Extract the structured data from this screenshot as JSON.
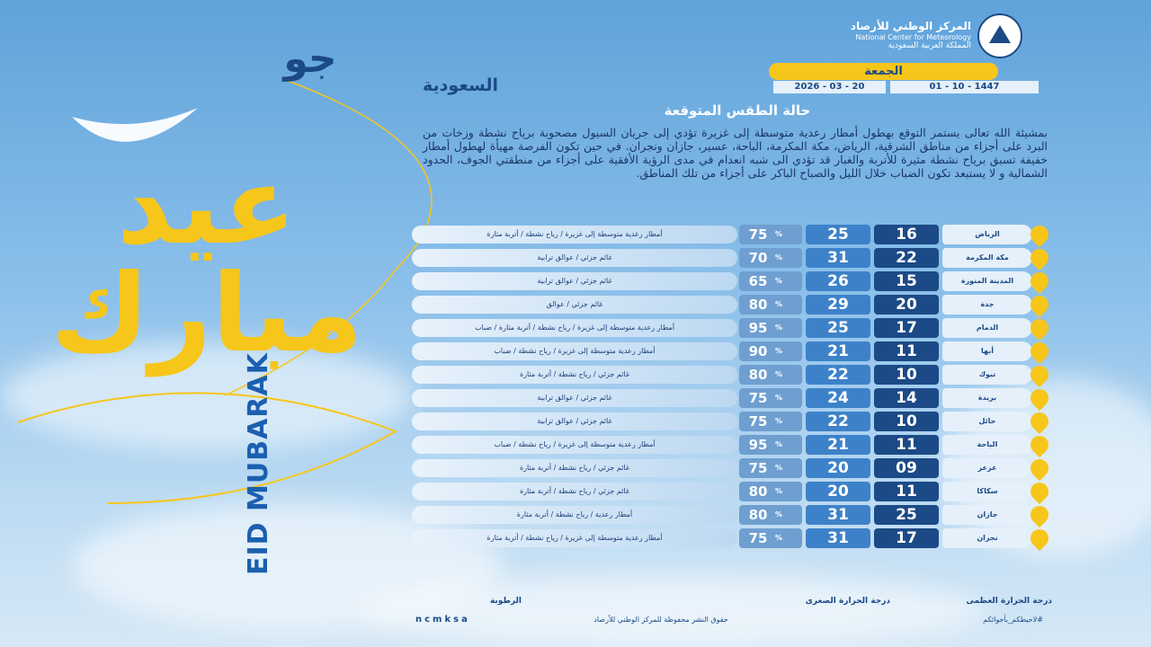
{
  "header": {
    "org_ar": "المركز الوطني للأرصاد",
    "org_en": "National Center for Meteorology",
    "country": "المملكة العربية السعودية",
    "brand": "جو",
    "brand_sub": "السعودية",
    "day": "الجمعة",
    "hijri": "01 - 10 - 1447",
    "gregorian": "2026 - 03 - 20"
  },
  "greeting": {
    "ar": "عيد مبارك",
    "en": "EID MUBARAK"
  },
  "forecast": {
    "title": "حالة الطقس المتوقعة",
    "text": "بمشيئة الله تعالى يستمر التوقع بهطول أمطار رعدية متوسطة إلى غزيرة تؤدي إلى جريان السيول مصحوبة برياح نشطة وزخات من البرد على أجزاء من مناطق الشرقية، الرياض، مكة المكرمة، الباحة، عسير، جازان ونجران. في حين تكون الفرصة مهيأة لهطول أمطار خفيفة تسبق برياح نشطة مثيرة للأتربة والغبار قد تؤدي الى شبه انعدام في مدى الرؤية الأفقية على أجزاء من منطقتي الجوف، الحدود الشمالية و لا يستبعد تكون الضباب خلال الليل والصباح الباكر على أجزاء من تلك المناطق."
  },
  "table": {
    "unit": "%",
    "rows": [
      {
        "city": "الرياض",
        "min": 16,
        "max": 25,
        "humidity": 75,
        "desc": "أمطار رعدية متوسطة إلى غزيرة / رياح نشطة / أتربة مثارة"
      },
      {
        "city": "مكة المكرمة",
        "min": 22,
        "max": 31,
        "humidity": 70,
        "desc": "غائم جزئي / عوالق ترابية"
      },
      {
        "city": "المدينة المنورة",
        "min": 15,
        "max": 26,
        "humidity": 65,
        "desc": "غائم جزئي / عوالق ترابية"
      },
      {
        "city": "جدة",
        "min": 20,
        "max": 29,
        "humidity": 80,
        "desc": "غائم جزئي / عوالق"
      },
      {
        "city": "الدمام",
        "min": 17,
        "max": 25,
        "humidity": 95,
        "desc": "أمطار رعدية متوسطة إلى غزيرة / رياح نشطة / أتربة مثارة / ضباب"
      },
      {
        "city": "أبها",
        "min": 11,
        "max": 21,
        "humidity": 90,
        "desc": "أمطار رعدية متوسطة إلى غزيرة / رياح نشطة / ضباب"
      },
      {
        "city": "تبوك",
        "min": 10,
        "max": 22,
        "humidity": 80,
        "desc": "غائم جزئي / رياح نشطة / أتربة مثارة"
      },
      {
        "city": "بريدة",
        "min": 14,
        "max": 24,
        "humidity": 75,
        "desc": "غائم جزئي / عوالق ترابية"
      },
      {
        "city": "حائل",
        "min": 10,
        "max": 22,
        "humidity": 75,
        "desc": "غائم جزئي / عوالق ترابية"
      },
      {
        "city": "الباحة",
        "min": 11,
        "max": 21,
        "humidity": 95,
        "desc": "أمطار رعدية متوسطة إلى غزيرة / رياح نشطة / ضباب"
      },
      {
        "city": "عرعر",
        "min": "09",
        "max": 20,
        "humidity": 75,
        "desc": "غائم جزئي / رياح نشطة / أتربة مثارة"
      },
      {
        "city": "سكاكا",
        "min": 11,
        "max": 20,
        "humidity": 80,
        "desc": "غائم جزئي / رياح نشطة / أتربة مثارة"
      },
      {
        "city": "جازان",
        "min": 25,
        "max": 31,
        "humidity": 80,
        "desc": "أمطار رعدية / رياح نشطة / أتربة مثارة"
      },
      {
        "city": "نجران",
        "min": 17,
        "max": 31,
        "humidity": 75,
        "desc": "أمطار رعدية متوسطة إلى غزيرة / رياح نشطة / أتربة مثارة"
      }
    ]
  },
  "legend": {
    "max": "درجة الحرارة العظمى",
    "min": "درجة الحرارة الصغرى",
    "humidity": "الرطوبة"
  },
  "footer": {
    "handle": "ncmksa",
    "rights": "حقوق النشر محفوظة للمركز الوطني للأرصاد",
    "hashtag": "#لاحيطكم_بأجوائكم"
  }
}
